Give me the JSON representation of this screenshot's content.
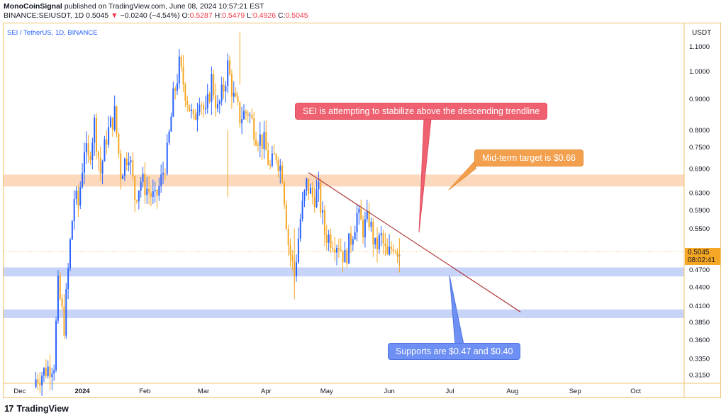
{
  "header": {
    "author": "MonoCoinSignal",
    "published": "published on TradingView.com, June 08, 2024 10:57:21 EST",
    "symbol_line": "BINANCE:SEIUSDT, 1D",
    "last": "0.5045",
    "change": "−0.0240 (−4.54%)",
    "open_label": "O:",
    "open": "0.5287",
    "high_label": "H:",
    "high": "0.5479",
    "low_label": "L:",
    "low": "0.4926",
    "close_label": "C:",
    "close": "0.5045"
  },
  "pair_label": "SEI / TetherUS, 1D, BINANCE",
  "price_unit": "USDT",
  "price_tag": {
    "value": "0.5045",
    "countdown": "08:02:41"
  },
  "callouts": {
    "red": "SEI is attempting to stabilize above the descending trendline",
    "orange": "Mid-term target is $0.66",
    "blue": "Supports are $0.47 and $0.40"
  },
  "footer": {
    "brand": "TradingView"
  },
  "colors": {
    "up": "#2962ff",
    "down": "#f5a623",
    "resistance_zone": "#fcd9bd",
    "support_zone": "#c7d4f8",
    "trendline": "#b03a3a"
  },
  "chart_data": {
    "type": "candlestick",
    "title": "SEI / TetherUS, 1D, BINANCE",
    "scale": "log",
    "ylim": [
      0.305,
      1.2
    ],
    "y_ticks": [
      "1.1000",
      "1.0000",
      "0.9000",
      "0.8000",
      "0.7500",
      "0.6900",
      "0.6300",
      "0.5900",
      "0.5500",
      "0.4700",
      "0.4400",
      "0.4100",
      "0.3850",
      "0.3600",
      "0.3350",
      "0.3150"
    ],
    "x_ticks": [
      "Dec",
      "2024",
      "Feb",
      "Mar",
      "Apr",
      "May",
      "Jun",
      "Jul",
      "Aug",
      "Sep",
      "Oct"
    ],
    "x_range_days": [
      -39,
      298
    ],
    "x_tick_days": [
      -31,
      0,
      31,
      60,
      91,
      121,
      152,
      182,
      213,
      244,
      274
    ],
    "current_price": 0.5045,
    "zones": [
      {
        "name": "resistance",
        "low": 0.645,
        "high": 0.675
      },
      {
        "name": "support-1",
        "low": 0.458,
        "high": 0.474
      },
      {
        "name": "support-2",
        "low": 0.391,
        "high": 0.404
      }
    ],
    "trendline": {
      "start": {
        "day": 112,
        "price": 0.68
      },
      "end": {
        "day": 217,
        "price": 0.4
      }
    },
    "segments": [
      {
        "d": -23,
        "p": 0.31
      },
      {
        "d": -14,
        "p": 0.33
      },
      {
        "d": -12,
        "p": 0.44
      },
      {
        "d": -9,
        "p": 0.38
      },
      {
        "d": -6,
        "p": 0.52
      },
      {
        "d": -4,
        "p": 0.62
      },
      {
        "d": -2,
        "p": 0.6
      },
      {
        "d": 1,
        "p": 0.75
      },
      {
        "d": 3,
        "p": 0.71
      },
      {
        "d": 6,
        "p": 0.82
      },
      {
        "d": 9,
        "p": 0.68
      },
      {
        "d": 12,
        "p": 0.78
      },
      {
        "d": 16,
        "p": 0.85
      },
      {
        "d": 19,
        "p": 0.68
      },
      {
        "d": 23,
        "p": 0.74
      },
      {
        "d": 26,
        "p": 0.62
      },
      {
        "d": 29,
        "p": 0.66
      },
      {
        "d": 32,
        "p": 0.64
      },
      {
        "d": 36,
        "p": 0.61
      },
      {
        "d": 39,
        "p": 0.66
      },
      {
        "d": 42,
        "p": 0.73
      },
      {
        "d": 45,
        "p": 0.9
      },
      {
        "d": 48,
        "p": 1.02
      },
      {
        "d": 52,
        "p": 0.9
      },
      {
        "d": 55,
        "p": 0.82
      },
      {
        "d": 58,
        "p": 0.92
      },
      {
        "d": 61,
        "p": 0.84
      },
      {
        "d": 64,
        "p": 0.97
      },
      {
        "d": 67,
        "p": 0.86
      },
      {
        "d": 70,
        "p": 0.94
      },
      {
        "d": 72,
        "p": 1.02
      },
      {
        "d": 75,
        "p": 0.9
      },
      {
        "d": 78,
        "p": 0.84
      },
      {
        "d": 82,
        "p": 0.86
      },
      {
        "d": 86,
        "p": 0.79
      },
      {
        "d": 90,
        "p": 0.76
      },
      {
        "d": 93,
        "p": 0.69
      },
      {
        "d": 96,
        "p": 0.73
      },
      {
        "d": 99,
        "p": 0.68
      },
      {
        "d": 102,
        "p": 0.52
      },
      {
        "d": 105,
        "p": 0.46
      },
      {
        "d": 108,
        "p": 0.57
      },
      {
        "d": 111,
        "p": 0.65
      },
      {
        "d": 114,
        "p": 0.62
      },
      {
        "d": 117,
        "p": 0.63
      },
      {
        "d": 120,
        "p": 0.54
      },
      {
        "d": 123,
        "p": 0.53
      },
      {
        "d": 127,
        "p": 0.52
      },
      {
        "d": 130,
        "p": 0.49
      },
      {
        "d": 133,
        "p": 0.53
      },
      {
        "d": 136,
        "p": 0.58
      },
      {
        "d": 139,
        "p": 0.55
      },
      {
        "d": 142,
        "p": 0.57
      },
      {
        "d": 145,
        "p": 0.51
      },
      {
        "d": 148,
        "p": 0.53
      },
      {
        "d": 151,
        "p": 0.49
      },
      {
        "d": 154,
        "p": 0.52
      },
      {
        "d": 157,
        "p": 0.5045
      }
    ]
  }
}
